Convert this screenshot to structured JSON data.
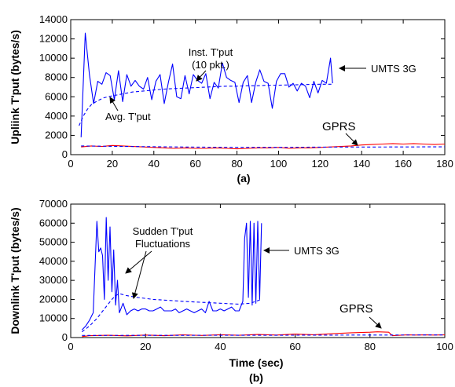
{
  "chart_data": [
    {
      "type": "line",
      "panel_label": "(a)",
      "xlabel": "",
      "ylabel": "Upliink T'put (bytes/s)",
      "xlim": [
        0,
        180
      ],
      "ylim": [
        0,
        14000
      ],
      "xticks": [
        0,
        20,
        40,
        60,
        80,
        100,
        120,
        140,
        160,
        180
      ],
      "yticks": [
        0,
        2000,
        4000,
        6000,
        8000,
        10000,
        12000,
        14000
      ],
      "grid": false,
      "colors": {
        "umts": "#0000ff",
        "gprs_inst": "#ff0000",
        "gprs_avg": "#0000ff"
      },
      "annotations": {
        "inst_line1": "Inst. T'put",
        "inst_line2": "(10 pkt.)",
        "avg": "Avg. T'put",
        "umts": "UMTS 3G",
        "gprs": "GPRS"
      },
      "series": [
        {
          "key": "umts_inst",
          "style": "solid",
          "color": "#0000ff",
          "x": [
            5,
            7,
            9,
            11,
            13,
            15,
            17,
            19,
            21,
            23,
            25,
            27,
            29,
            31,
            33,
            35,
            37,
            39,
            41,
            43,
            45,
            47,
            49,
            51,
            53,
            55,
            57,
            59,
            61,
            63,
            65,
            67,
            69,
            71,
            73,
            75,
            77,
            79,
            81,
            83,
            85,
            87,
            89,
            91,
            93,
            95,
            97,
            99,
            101,
            103,
            105,
            107,
            109,
            111,
            113,
            115,
            117,
            119,
            121,
            123,
            125,
            126
          ],
          "y": [
            1800,
            12600,
            8300,
            5300,
            7600,
            7300,
            8500,
            8200,
            5700,
            8700,
            5500,
            8300,
            7100,
            7700,
            7100,
            6800,
            8000,
            5700,
            7600,
            8300,
            5300,
            7500,
            9400,
            6000,
            5800,
            8200,
            6300,
            8300,
            7700,
            7400,
            8400,
            5800,
            7500,
            6900,
            9500,
            8000,
            7700,
            7500,
            5400,
            7500,
            8200,
            5400,
            7500,
            8800,
            7600,
            7400,
            4800,
            7600,
            8400,
            8400,
            7000,
            7400,
            6600,
            7400,
            7100,
            5900,
            7600,
            6400,
            7700,
            7400,
            10000,
            7400
          ]
        },
        {
          "key": "umts_avg",
          "style": "dashed",
          "color": "#0000ff",
          "x": [
            4,
            6,
            8,
            10,
            13,
            16,
            20,
            25,
            30,
            35,
            40,
            45,
            50,
            55,
            60,
            65,
            70,
            75,
            80,
            85,
            90,
            95,
            100,
            110,
            120,
            126
          ],
          "y": [
            3000,
            4000,
            4700,
            5200,
            5600,
            5900,
            6100,
            6300,
            6500,
            6600,
            6700,
            6800,
            6850,
            6900,
            6950,
            7000,
            7050,
            7100,
            7100,
            7150,
            7150,
            7200,
            7200,
            7250,
            7300,
            7300
          ]
        },
        {
          "key": "gprs_inst",
          "style": "solid",
          "color": "#ff0000",
          "x": [
            5,
            10,
            15,
            20,
            25,
            30,
            35,
            40,
            45,
            50,
            55,
            60,
            65,
            70,
            75,
            80,
            85,
            90,
            95,
            100,
            105,
            110,
            115,
            120,
            125,
            130,
            135,
            140,
            145,
            150,
            155,
            160,
            165,
            170,
            175,
            180
          ],
          "y": [
            800,
            900,
            850,
            950,
            900,
            850,
            800,
            750,
            700,
            650,
            700,
            650,
            650,
            700,
            650,
            600,
            650,
            700,
            700,
            750,
            650,
            700,
            700,
            750,
            800,
            850,
            900,
            1000,
            1050,
            1100,
            1150,
            1100,
            1150,
            1100,
            1050,
            1100
          ]
        },
        {
          "key": "gprs_avg",
          "style": "dashed",
          "color": "#0000ff",
          "x": [
            5,
            20,
            40,
            60,
            80,
            100,
            120,
            140,
            160,
            180
          ],
          "y": [
            900,
            860,
            820,
            780,
            760,
            760,
            780,
            790,
            800,
            810
          ]
        }
      ]
    },
    {
      "type": "line",
      "panel_label": "(b)",
      "xlabel": "Time (sec)",
      "ylabel": "Downlink T'put (bytes/s)",
      "xlim": [
        0,
        100
      ],
      "ylim": [
        0,
        70000
      ],
      "xticks": [
        0,
        20,
        40,
        60,
        80,
        100
      ],
      "yticks": [
        0,
        10000,
        20000,
        30000,
        40000,
        50000,
        60000,
        70000
      ],
      "grid": false,
      "colors": {
        "umts": "#0000ff",
        "gprs_inst": "#ff0000",
        "gprs_avg": "#0000ff"
      },
      "annotations": {
        "fluct_line1": "Sudden T'put",
        "fluct_line2": "Fluctuations",
        "umts": "UMTS 3G",
        "gprs": "GPRS"
      },
      "series": [
        {
          "key": "umts_inst",
          "style": "solid",
          "color": "#0000ff",
          "x": [
            3,
            4,
            5,
            6,
            7,
            7.5,
            8,
            8.5,
            9,
            9.5,
            10,
            10.5,
            11,
            11.5,
            12,
            12.5,
            13,
            14,
            15,
            16,
            17,
            18,
            19,
            20,
            21,
            22,
            23,
            24,
            25,
            26,
            27,
            28,
            29,
            30,
            31,
            32,
            33,
            34,
            35,
            36,
            37,
            38,
            39,
            40,
            41,
            42,
            43,
            44,
            45,
            46,
            46.5,
            47,
            47.5,
            48,
            48.5,
            49,
            49.5,
            50,
            50.5,
            51
          ],
          "y": [
            4000,
            6000,
            9000,
            13000,
            61000,
            45000,
            47000,
            43000,
            20000,
            63000,
            30000,
            58000,
            24000,
            46000,
            17000,
            30000,
            13000,
            18000,
            12000,
            14000,
            15000,
            14000,
            15000,
            15000,
            14000,
            14000,
            15000,
            16000,
            14000,
            14000,
            14000,
            15000,
            13000,
            14000,
            15000,
            14000,
            13000,
            14000,
            15000,
            13000,
            19000,
            14000,
            14000,
            15000,
            14000,
            15000,
            16000,
            14000,
            14000,
            19000,
            52000,
            60000,
            21000,
            61000,
            17000,
            60000,
            18000,
            61000,
            20000,
            60000
          ]
        },
        {
          "key": "umts_avg",
          "style": "dashed",
          "color": "#0000ff",
          "x": [
            3,
            5,
            7,
            9,
            11,
            12,
            13,
            15,
            18,
            22,
            26,
            30,
            35,
            40,
            45,
            48,
            51
          ],
          "y": [
            3000,
            6000,
            10000,
            15000,
            20000,
            22000,
            23000,
            22000,
            21000,
            20000,
            19500,
            19000,
            18500,
            18000,
            17500,
            18000,
            20000
          ]
        },
        {
          "key": "gprs_inst",
          "style": "solid",
          "color": "#ff0000",
          "x": [
            3,
            5,
            10,
            15,
            20,
            25,
            30,
            35,
            40,
            45,
            50,
            55,
            60,
            65,
            70,
            75,
            80,
            82,
            85,
            86,
            88,
            90,
            92,
            95,
            97,
            100
          ],
          "y": [
            500,
            1000,
            1200,
            900,
            1300,
            1000,
            1400,
            1100,
            1500,
            1200,
            1600,
            1300,
            1800,
            1500,
            2000,
            2500,
            2800,
            3000,
            2800,
            1000,
            1200,
            1400,
            1300,
            1400,
            1300,
            1400
          ]
        },
        {
          "key": "gprs_avg",
          "style": "dashed",
          "color": "#0000ff",
          "x": [
            3,
            20,
            40,
            60,
            80,
            100
          ],
          "y": [
            1100,
            1150,
            1200,
            1250,
            1300,
            1350
          ]
        }
      ]
    }
  ]
}
